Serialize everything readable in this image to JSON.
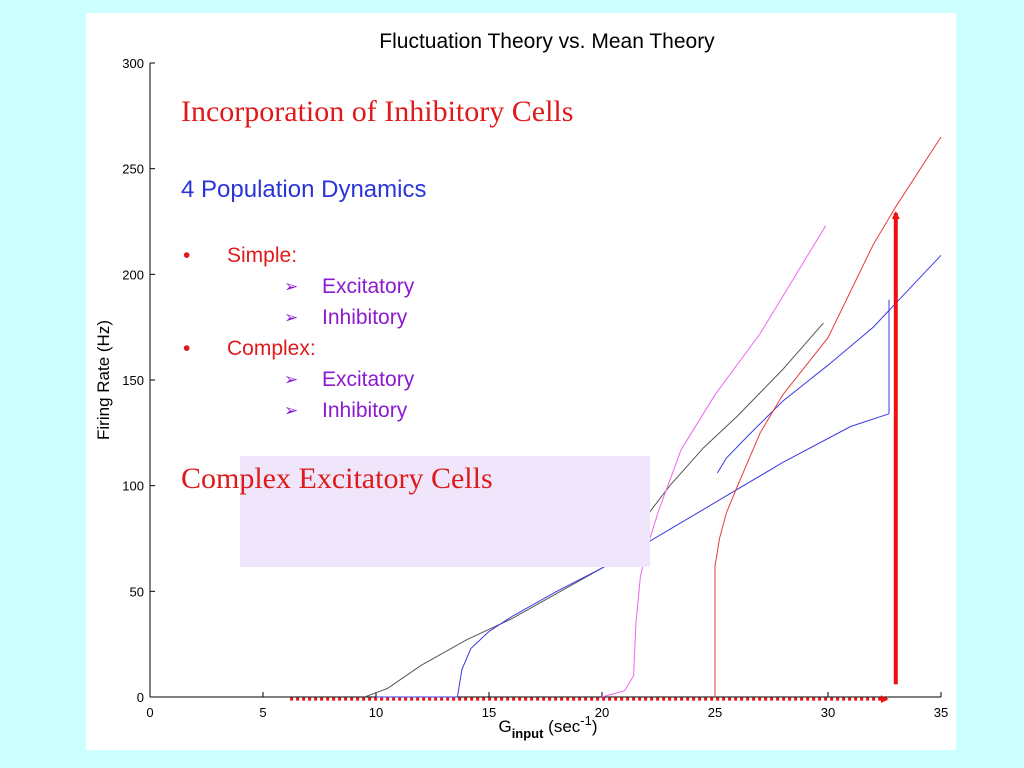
{
  "colors": {
    "page_background": "#ccffff",
    "slide_background": "#ffffff",
    "heading_red": "#e01a1a",
    "heading_blue": "#2a35d8",
    "bullet_red": "#e01a1a",
    "sub_bullet_purple": "#8b1ad0",
    "caption_box": "#f0e6fb",
    "arrow_red": "#ee1111"
  },
  "overlay": {
    "heading": "Incorporation of Inhibitory Cells",
    "subheading": "4 Population Dynamics",
    "bullets": [
      {
        "marker": "•",
        "label": "Simple:",
        "subitems": [
          {
            "marker": "➢",
            "label": "Excitatory"
          },
          {
            "marker": "➢",
            "label": "Inhibitory"
          }
        ]
      },
      {
        "marker": "•",
        "label": "Complex:",
        "subitems": [
          {
            "marker": "➢",
            "label": "Excitatory"
          },
          {
            "marker": "➢",
            "label": "Inhibitory"
          }
        ]
      }
    ],
    "caption": "Complex Excitatory Cells"
  },
  "chart_data": {
    "type": "line",
    "title": "Fluctuation Theory vs. Mean Theory",
    "ylabel": "Firing Rate (Hz)",
    "xlabel": {
      "base": "G",
      "subscript": "input",
      "unit_prefix": "(sec",
      "superscript": "-1",
      "unit_suffix": ")"
    },
    "xlim": [
      0,
      35
    ],
    "ylim": [
      0,
      300
    ],
    "xticks": [
      0,
      5,
      10,
      15,
      20,
      25,
      30,
      35
    ],
    "yticks": [
      0,
      50,
      100,
      150,
      200,
      250,
      300
    ],
    "grid": false,
    "series": [
      {
        "color": "#555555",
        "points": [
          [
            9.5,
            0
          ],
          [
            10.5,
            4
          ],
          [
            12,
            15
          ],
          [
            14,
            27
          ],
          [
            16,
            37
          ],
          [
            18,
            49
          ],
          [
            20,
            61
          ],
          [
            21.3,
            72
          ],
          [
            21.6,
            78
          ],
          [
            22,
            86
          ],
          [
            23,
            100
          ],
          [
            24.5,
            118
          ],
          [
            26,
            133
          ],
          [
            28,
            155
          ],
          [
            29.8,
            177
          ]
        ]
      },
      {
        "color": "#3a3ae6",
        "points": [
          [
            10,
            0
          ],
          [
            13.6,
            0
          ],
          [
            13.8,
            13
          ],
          [
            14.2,
            23
          ],
          [
            15,
            31
          ],
          [
            16,
            38
          ],
          [
            18,
            50
          ],
          [
            20,
            61
          ],
          [
            22,
            73
          ],
          [
            25,
            92
          ],
          [
            28,
            111
          ],
          [
            31,
            128
          ],
          [
            32.7,
            134
          ]
        ]
      },
      {
        "color": "#3a3ae6",
        "points": [
          [
            25.1,
            106
          ],
          [
            25.5,
            113
          ],
          [
            26.5,
            124
          ],
          [
            28,
            140
          ],
          [
            30,
            157
          ],
          [
            32,
            175
          ],
          [
            35,
            209
          ]
        ]
      },
      {
        "color": "#3a3ae6",
        "points": [
          [
            32.7,
            134
          ],
          [
            32.7,
            188
          ]
        ]
      },
      {
        "color": "#ee66ee",
        "points": [
          [
            20,
            0
          ],
          [
            21,
            3
          ],
          [
            21.4,
            10
          ],
          [
            21.5,
            35
          ],
          [
            21.7,
            57
          ],
          [
            22,
            71
          ],
          [
            22.5,
            88
          ],
          [
            23.5,
            117
          ],
          [
            25,
            143
          ],
          [
            27,
            172
          ],
          [
            29.9,
            223
          ]
        ]
      },
      {
        "color": "#e83a3a",
        "points": [
          [
            25,
            0
          ],
          [
            25,
            62
          ],
          [
            25.2,
            75
          ],
          [
            25.5,
            87
          ],
          [
            26,
            100
          ],
          [
            27,
            125
          ],
          [
            28,
            143
          ],
          [
            30,
            170
          ],
          [
            32,
            214
          ],
          [
            33,
            232
          ],
          [
            35,
            265
          ]
        ]
      }
    ],
    "annotations": [
      {
        "kind": "dotted-arrow",
        "orientation": "horizontal",
        "from": [
          6.2,
          -1
        ],
        "to": [
          32.6,
          -1
        ],
        "color": "#ee1111"
      },
      {
        "kind": "arrow",
        "orientation": "vertical",
        "from": [
          33,
          6
        ],
        "to": [
          33,
          229
        ],
        "color": "#ee1111"
      }
    ]
  }
}
